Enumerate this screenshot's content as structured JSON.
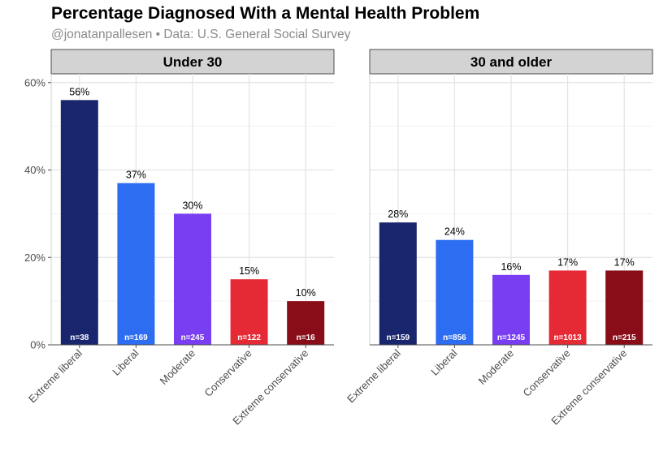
{
  "title": "Percentage Diagnosed With a Mental Health Problem",
  "subtitle": "@jonatanpallesen • Data: U.S. General Social Survey",
  "chart_data": {
    "type": "bar",
    "ylim": [
      0,
      62
    ],
    "yticks": [
      0,
      20,
      40,
      60
    ],
    "ytick_labels": [
      "0%",
      "20%",
      "40%",
      "60%"
    ],
    "categories": [
      "Extreme liberal",
      "Liberal",
      "Moderate",
      "Conservative",
      "Extreme conservative"
    ],
    "colors": [
      "#19266e",
      "#2d6df2",
      "#7a3ef2",
      "#e52a36",
      "#880d18"
    ],
    "panels": [
      {
        "name": "Under 30",
        "values": [
          56,
          37,
          30,
          15,
          10
        ],
        "labels": [
          "56%",
          "37%",
          "30%",
          "15%",
          "10%"
        ],
        "n_labels": [
          "n=38",
          "n=169",
          "n=245",
          "n=122",
          "n=16"
        ]
      },
      {
        "name": "30 and older",
        "values": [
          28,
          24,
          16,
          17,
          17
        ],
        "labels": [
          "28%",
          "24%",
          "16%",
          "17%",
          "17%"
        ],
        "n_labels": [
          "n=159",
          "n=856",
          "n=1245",
          "n=1013",
          "n=215"
        ]
      }
    ]
  }
}
